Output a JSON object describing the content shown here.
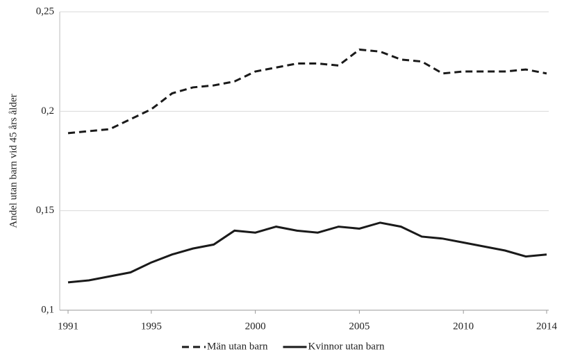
{
  "chart_data": {
    "type": "line",
    "y_label": "Andel utan barn vid 45 års ålder",
    "x": [
      1991,
      1992,
      1993,
      1994,
      1995,
      1996,
      1997,
      1998,
      1999,
      2000,
      2001,
      2002,
      2003,
      2004,
      2005,
      2006,
      2007,
      2008,
      2009,
      2010,
      2011,
      2012,
      2013,
      2014
    ],
    "series": [
      {
        "name": "Män utan barn",
        "color": "#1a1a1a",
        "dash": true,
        "values": [
          0.189,
          0.19,
          0.191,
          0.196,
          0.201,
          0.209,
          0.212,
          0.213,
          0.215,
          0.22,
          0.222,
          0.224,
          0.224,
          0.223,
          0.231,
          0.23,
          0.226,
          0.225,
          0.219,
          0.22,
          0.22,
          0.22,
          0.221,
          0.219
        ]
      },
      {
        "name": "Kvinnor utan barn",
        "color": "#1a1a1a",
        "dash": false,
        "values": [
          0.114,
          0.115,
          0.117,
          0.119,
          0.124,
          0.128,
          0.131,
          0.133,
          0.14,
          0.139,
          0.142,
          0.14,
          0.139,
          0.142,
          0.141,
          0.144,
          0.142,
          0.137,
          0.136,
          0.134,
          0.132,
          0.13,
          0.127,
          0.128
        ]
      }
    ],
    "xlim": [
      1991,
      2014
    ],
    "xticks": [
      1991,
      1995,
      2000,
      2005,
      2010,
      2014
    ],
    "ylim": [
      0.1,
      0.25
    ],
    "yticks": [
      {
        "value": 0.1,
        "label": "0,1"
      },
      {
        "value": 0.15,
        "label": "0,15"
      },
      {
        "value": 0.2,
        "label": "0,2"
      },
      {
        "value": 0.25,
        "label": "0,25"
      }
    ],
    "grid": true,
    "legend": "bottom"
  }
}
